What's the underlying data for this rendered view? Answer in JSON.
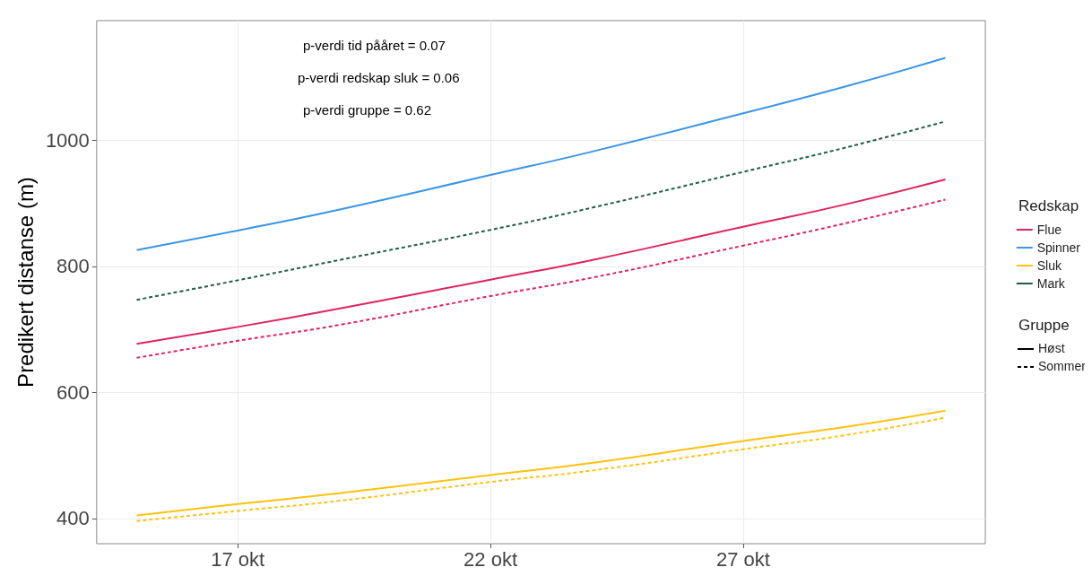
{
  "chart_data": {
    "type": "line",
    "ylabel": "Predikert distanse (m)",
    "legend_title": "Redskap",
    "legend": "right",
    "grid": true,
    "x": [
      "--10-15",
      "--10-17",
      "--10-19",
      "--10-22",
      "--10-24",
      "--10-27",
      "--10-29",
      "--10-31"
    ],
    "xlim": [
      "--10-14T05:00",
      "--10-31T19:00"
    ],
    "xticks": [
      {
        "value": "--10-17",
        "label": "17 okt"
      },
      {
        "value": "--10-22",
        "label": "22 okt"
      },
      {
        "value": "--10-27",
        "label": "27 okt"
      }
    ],
    "ylim": [
      360,
      1190
    ],
    "yticks": [
      400,
      600,
      800,
      1000
    ],
    "series": [
      {
        "name": "Flue",
        "color": "#e0245e",
        "line_style": "solid",
        "values": [
          677,
          704,
          733,
          779,
          810,
          863,
          898,
          938
        ]
      },
      {
        "color": "#e0245e",
        "line_style": "dashed",
        "values": [
          655,
          682,
          707,
          753,
          782,
          833,
          868,
          906
        ]
      },
      {
        "name": "Spinner",
        "color": "#3a96e6",
        "line_style": "solid",
        "values": [
          826,
          857,
          890,
          945,
          982,
          1043,
          1085,
          1131
        ]
      },
      {
        "name": "Sluk",
        "color": "#ffc20e",
        "line_style": "solid",
        "values": [
          405,
          423,
          440,
          469,
          488,
          523,
          545,
          571
        ]
      },
      {
        "color": "#ffc20e",
        "line_style": "dashed",
        "values": [
          396,
          412,
          428,
          458,
          476,
          510,
          532,
          560
        ]
      },
      {
        "name": "Mark",
        "color": "#1f5f4a",
        "line_style": "dashed",
        "values": [
          747,
          778,
          810,
          858,
          893,
          950,
          988,
          1030
        ]
      }
    ],
    "annotations": [
      "p-verdi tid pååret = 0.07",
      "p-verdi redskap sluk = 0.06",
      "p-verdi gruppe = 0.62",
      "Gruppe",
      "Høst",
      "Sommer"
    ]
  }
}
